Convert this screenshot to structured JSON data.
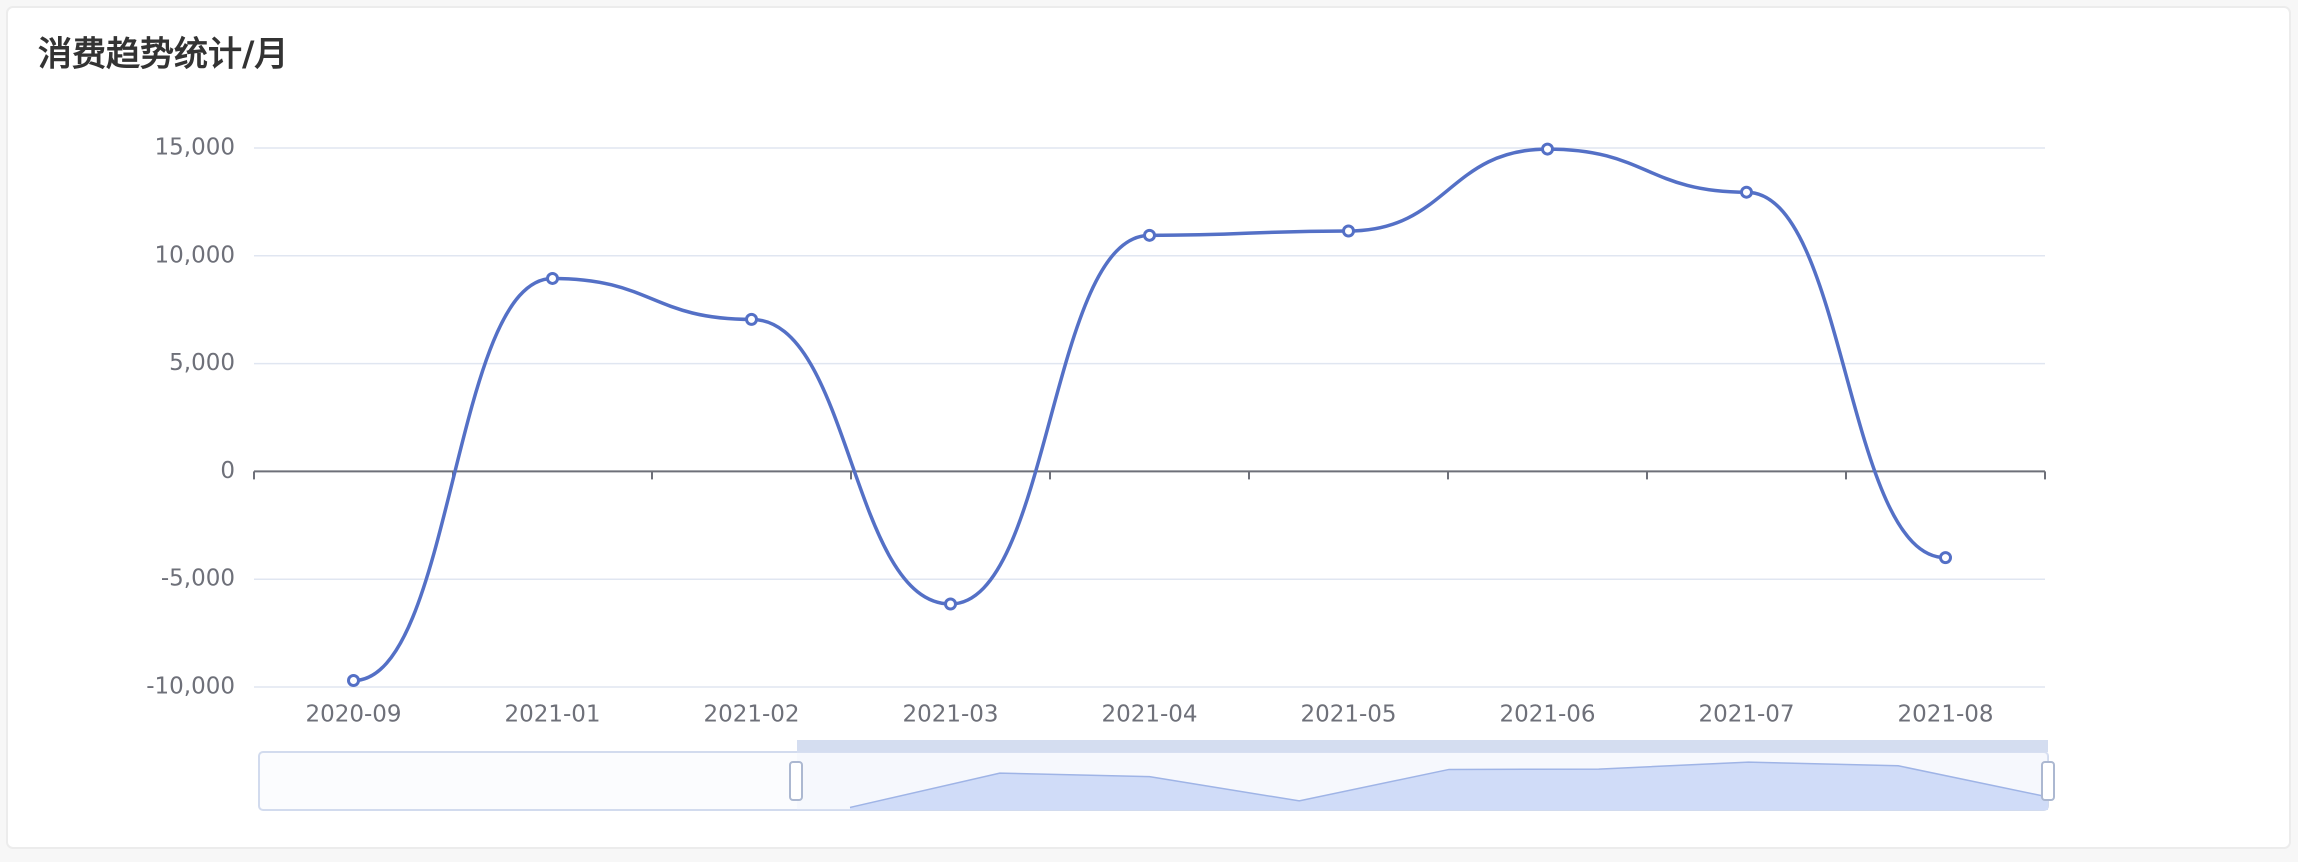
{
  "chart_data": {
    "type": "line",
    "title": "消费趋势统计/月",
    "categories": [
      "2020-09",
      "2021-01",
      "2021-02",
      "2021-03",
      "2021-04",
      "2021-05",
      "2021-06",
      "2021-07",
      "2021-08"
    ],
    "values": [
      -9700,
      8950,
      7050,
      -6150,
      10950,
      11150,
      14950,
      12950,
      -4000
    ],
    "color": "#5470c6",
    "ylim": [
      -10000,
      15000
    ],
    "yticks": [
      {
        "value": -10000,
        "label": "-10,000"
      },
      {
        "value": -5000,
        "label": "-5,000"
      },
      0,
      {
        "value": 5000,
        "label": "5,000"
      },
      {
        "value": 10000,
        "label": "10,000"
      },
      {
        "value": 15000,
        "label": "15,000"
      }
    ],
    "grid": true,
    "smooth": true
  }
}
